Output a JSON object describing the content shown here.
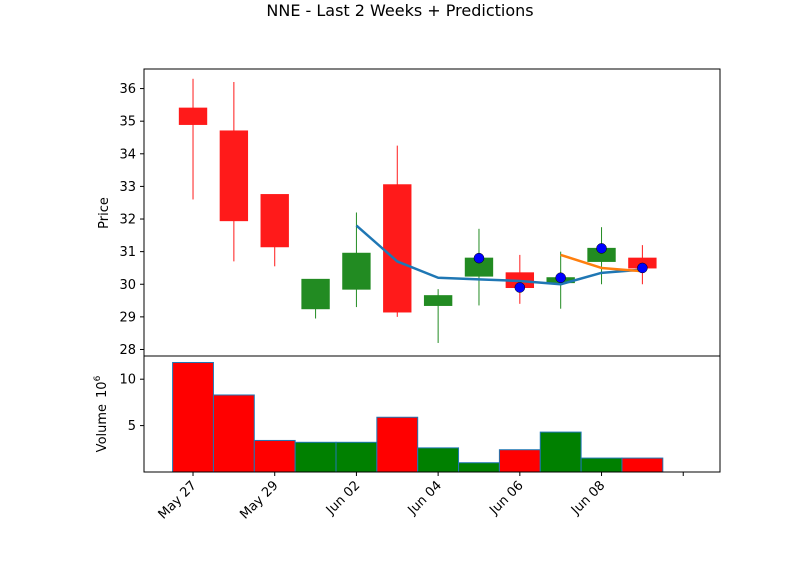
{
  "chart_data": {
    "type": "candlestick",
    "title": "NNE - Last 2 Weeks + Predictions",
    "price_panel": {
      "ylabel": "Price",
      "ylim": [
        27.8,
        36.6
      ],
      "yticks": [
        28,
        29,
        30,
        31,
        32,
        33,
        34,
        35,
        36
      ],
      "candles": [
        {
          "x": 0,
          "open": 35.4,
          "close": 34.9,
          "high": 36.3,
          "low": 32.6
        },
        {
          "x": 1,
          "open": 34.7,
          "close": 31.95,
          "high": 36.2,
          "low": 30.7
        },
        {
          "x": 2,
          "open": 32.75,
          "close": 31.15,
          "high": 32.75,
          "low": 30.55
        },
        {
          "x": 3,
          "open": 29.25,
          "close": 30.15,
          "high": 30.15,
          "low": 28.95
        },
        {
          "x": 4,
          "open": 29.85,
          "close": 30.95,
          "high": 32.2,
          "low": 29.3
        },
        {
          "x": 5,
          "open": 33.05,
          "close": 29.15,
          "high": 34.25,
          "low": 29.0
        },
        {
          "x": 6,
          "open": 29.35,
          "close": 29.65,
          "high": 29.85,
          "low": 28.2
        },
        {
          "x": 7,
          "open": 30.25,
          "close": 30.8,
          "high": 31.7,
          "low": 29.35
        },
        {
          "x": 8,
          "open": 30.35,
          "close": 29.9,
          "high": 30.9,
          "low": 29.4
        },
        {
          "x": 9,
          "open": 30.05,
          "close": 30.2,
          "high": 31.0,
          "low": 29.25
        },
        {
          "x": 10,
          "open": 30.7,
          "close": 31.1,
          "high": 31.75,
          "low": 30.0
        },
        {
          "x": 11,
          "open": 30.8,
          "close": 30.5,
          "high": 31.2,
          "low": 30.0
        }
      ],
      "series": [
        {
          "color": "#1f77b4",
          "x": [
            4,
            5,
            6,
            7,
            8,
            9,
            10,
            11
          ],
          "values": [
            31.8,
            30.7,
            30.2,
            30.15,
            30.1,
            30.0,
            30.35,
            30.45
          ]
        },
        {
          "color": "#ff7f0e",
          "x": [
            9,
            10,
            11
          ],
          "values": [
            30.9,
            30.5,
            30.4
          ]
        }
      ],
      "points": [
        {
          "x": 7,
          "value": 30.8
        },
        {
          "x": 8,
          "value": 29.9
        },
        {
          "x": 9,
          "value": 30.2
        },
        {
          "x": 10,
          "value": 31.1
        },
        {
          "x": 11,
          "value": 30.5
        }
      ]
    },
    "volume_panel": {
      "ylabel": "Volume",
      "ylabel_exponent": "10",
      "ylabel_exponent_power": "6",
      "ylim": [
        0,
        12.5
      ],
      "yticks": [
        5,
        10
      ],
      "bars": [
        {
          "x": 0,
          "value": 11.8,
          "color": "red"
        },
        {
          "x": 1,
          "value": 8.3,
          "color": "red"
        },
        {
          "x": 2,
          "value": 3.4,
          "color": "red"
        },
        {
          "x": 3,
          "value": 3.2,
          "color": "green"
        },
        {
          "x": 4,
          "value": 3.2,
          "color": "green"
        },
        {
          "x": 5,
          "value": 5.9,
          "color": "red"
        },
        {
          "x": 6,
          "value": 2.6,
          "color": "green"
        },
        {
          "x": 7,
          "value": 1.0,
          "color": "green"
        },
        {
          "x": 8,
          "value": 2.4,
          "color": "red"
        },
        {
          "x": 9,
          "value": 4.3,
          "color": "green"
        },
        {
          "x": 10,
          "value": 1.5,
          "color": "green"
        },
        {
          "x": 11,
          "value": 1.5,
          "color": "red"
        }
      ]
    },
    "xaxis": {
      "xlim": [
        -1.2,
        12.9
      ],
      "ticks": [
        {
          "x": 0,
          "label": "May 27"
        },
        {
          "x": 2,
          "label": "May 29"
        },
        {
          "x": 4,
          "label": "Jun 02"
        },
        {
          "x": 6,
          "label": "Jun 04"
        },
        {
          "x": 8,
          "label": "Jun 06"
        },
        {
          "x": 10,
          "label": "Jun 08"
        },
        {
          "x": 12,
          "label": ""
        }
      ]
    },
    "colors": {
      "up": "#228b22",
      "down": "#ff1a1a",
      "vol_up": "#008000",
      "vol_down": "#ff0000",
      "marker": "#0000ff"
    }
  }
}
